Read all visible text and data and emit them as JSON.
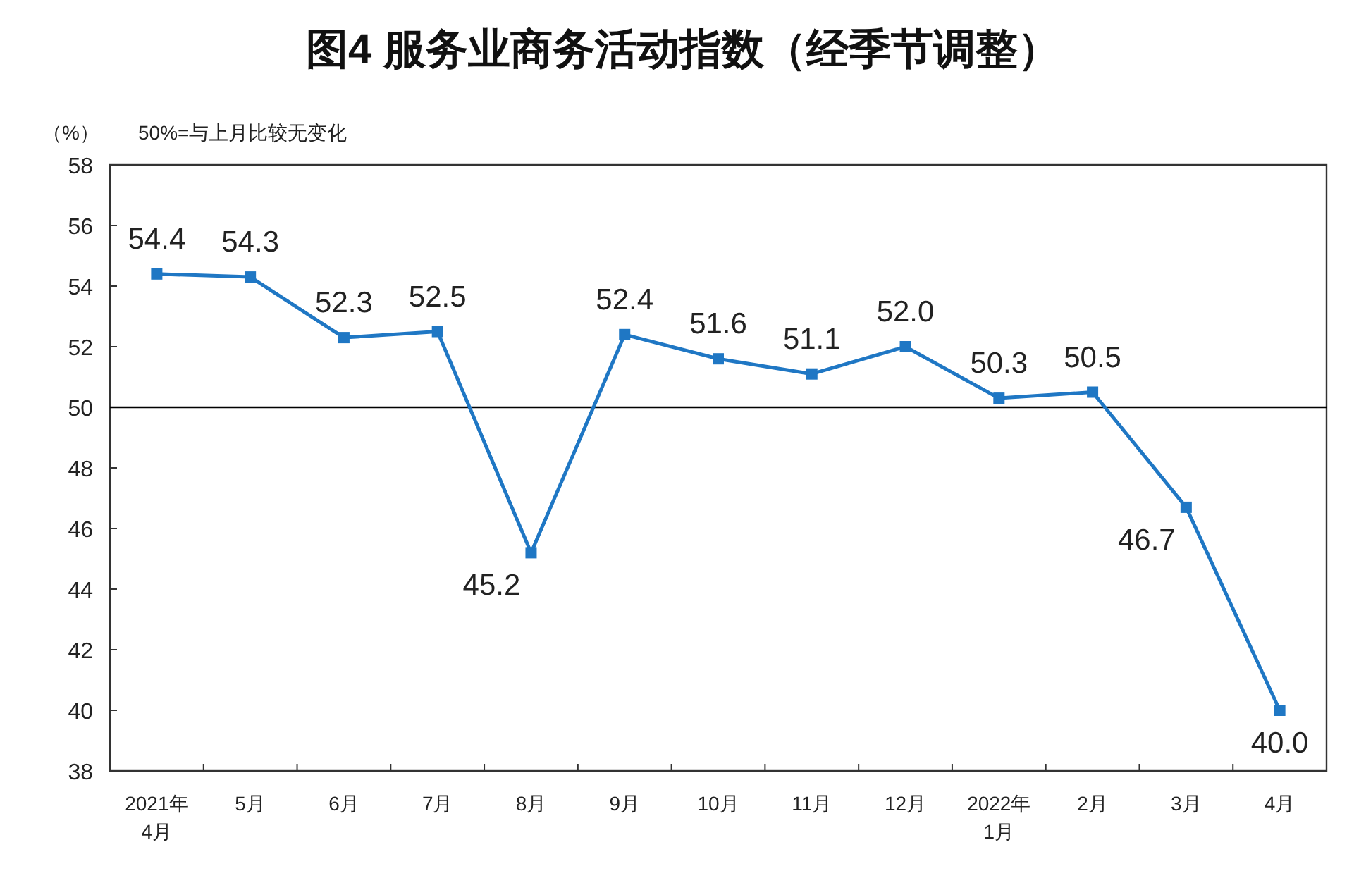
{
  "chart_data": {
    "type": "line",
    "title": "图4  服务业商务活动指数（经季节调整）",
    "ylabel": "（%）",
    "annotations": [
      "50%=与上月比较无变化"
    ],
    "categories": [
      "2021年\n4月",
      "5月",
      "6月",
      "7月",
      "8月",
      "9月",
      "10月",
      "11月",
      "12月",
      "2022年\n1月",
      "2月",
      "3月",
      "4月"
    ],
    "series": [
      {
        "color": "#1f77c4",
        "values": [
          54.4,
          54.3,
          52.3,
          52.5,
          45.2,
          52.4,
          51.6,
          51.1,
          52.0,
          50.3,
          50.5,
          46.7,
          40.0
        ],
        "value_labels": [
          "54.4",
          "54.3",
          "52.3",
          "52.5",
          "45.2",
          "52.4",
          "51.6",
          "51.1",
          "52.0",
          "50.3",
          "50.5",
          "46.7",
          "40.0"
        ]
      }
    ],
    "ylim": [
      38,
      58
    ],
    "yticks": [
      38,
      40,
      42,
      44,
      46,
      48,
      50,
      52,
      54,
      56,
      58
    ],
    "grid": false,
    "marker": "square",
    "line_style": "solid",
    "ref_lines": [
      {
        "axis": "y",
        "value": 50,
        "color": "#000000"
      }
    ]
  }
}
